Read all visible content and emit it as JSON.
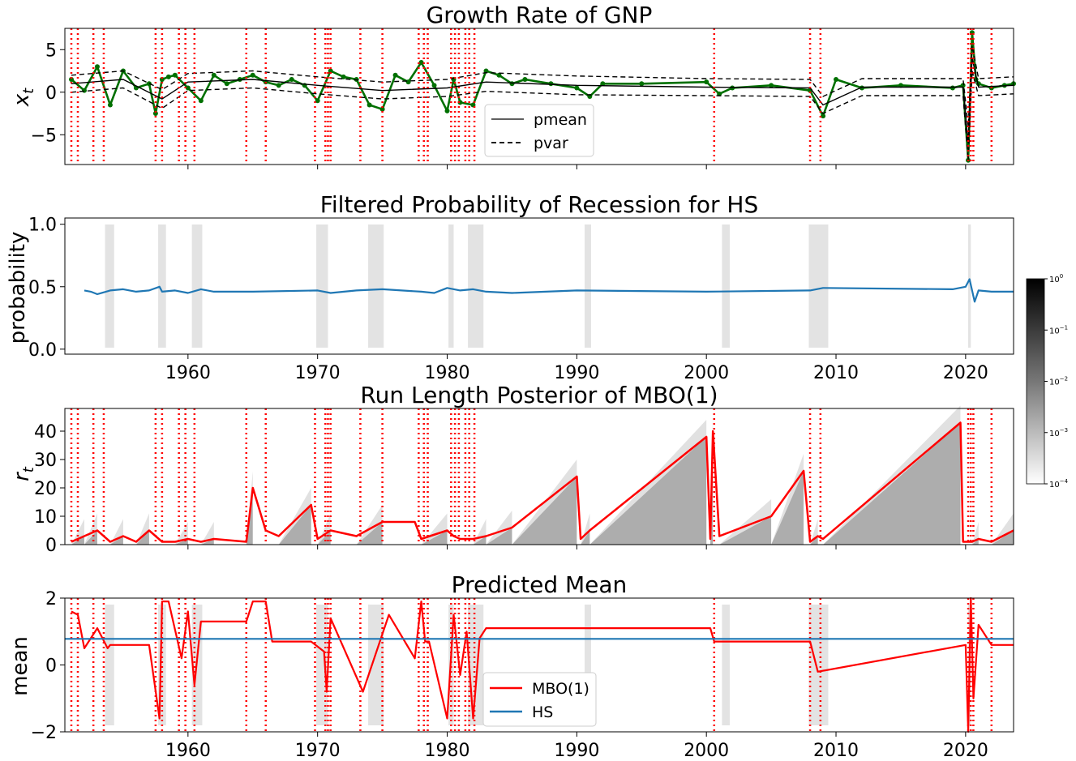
{
  "chart_data": [
    {
      "id": "gnp",
      "type": "line",
      "title": "Growth Rate of GNP",
      "ylabel": "x_t",
      "xlim": [
        1950.5,
        2023.7
      ],
      "ylim": [
        -8.5,
        7.5
      ],
      "yticks": [
        -5,
        0,
        5
      ],
      "legend": {
        "position": "bottom-center",
        "entries": [
          "pmean",
          "pvar"
        ]
      },
      "series": [
        {
          "name": "observed x_t",
          "color": "#007000",
          "style": "line+markers",
          "x": [
            1951,
            1952,
            1953,
            1954,
            1955,
            1956,
            1957,
            1957.5,
            1958,
            1958.5,
            1959,
            1960,
            1961,
            1962,
            1963,
            1964,
            1965,
            1966,
            1967,
            1968,
            1969,
            1970,
            1971,
            1972,
            1973,
            1974,
            1975,
            1976,
            1977,
            1978,
            1979,
            1980,
            1980.5,
            1981,
            1982,
            1983,
            1984,
            1985,
            1986,
            1988,
            1990,
            1991,
            1992,
            1995,
            2000,
            2001,
            2002,
            2005,
            2008,
            2009,
            2010,
            2012,
            2015,
            2019,
            2019.8,
            2020.2,
            2020.5,
            2020.8,
            2021,
            2022,
            2023,
            2023.7
          ],
          "y": [
            1.5,
            0.2,
            3.0,
            -1.5,
            2.5,
            0.5,
            1.0,
            -2.5,
            1.5,
            1.8,
            2.0,
            0.5,
            -1.0,
            2.0,
            1.0,
            1.5,
            2.0,
            1.2,
            0.8,
            1.5,
            0.8,
            -1.0,
            2.5,
            1.8,
            1.5,
            -1.5,
            -2.0,
            2.0,
            1.2,
            3.5,
            0.8,
            -2.2,
            1.5,
            -1.2,
            -1.5,
            2.5,
            2.0,
            1.0,
            1.5,
            1.0,
            0.5,
            -0.5,
            1.0,
            1.0,
            1.2,
            -0.2,
            0.5,
            0.8,
            0.2,
            -2.8,
            1.5,
            0.5,
            0.8,
            0.5,
            0.8,
            -8.0,
            7.0,
            1.5,
            1.0,
            0.5,
            0.8,
            1.0
          ]
        },
        {
          "name": "pmean",
          "color": "#000000",
          "style": "solid",
          "x": [
            1951,
            1955,
            1958,
            1960,
            1965,
            1970,
            1975,
            1980,
            1983,
            1990,
            2000,
            2008,
            2009,
            2012,
            2019.8,
            2020.2,
            2020.5,
            2021,
            2023.7
          ],
          "y": [
            1.0,
            1.5,
            -0.8,
            1.2,
            1.5,
            0.8,
            0.2,
            0.5,
            1.2,
            0.8,
            0.6,
            0.5,
            -1.5,
            0.6,
            0.6,
            -6.0,
            4.0,
            0.6,
            0.8
          ]
        },
        {
          "name": "pvar upper",
          "color": "#000000",
          "style": "dashed",
          "x": [
            1951,
            1955,
            1958,
            1960,
            1965,
            1970,
            1975,
            1980,
            1983,
            1990,
            2000,
            2008,
            2009,
            2012,
            2019.8,
            2020.2,
            2020.5,
            2021,
            2023.7
          ],
          "y": [
            2.0,
            2.5,
            0.3,
            2.2,
            2.5,
            1.8,
            1.2,
            1.5,
            2.3,
            1.9,
            1.6,
            1.5,
            -0.5,
            1.6,
            1.6,
            -4.0,
            5.5,
            1.6,
            1.8
          ]
        },
        {
          "name": "pvar lower",
          "color": "#000000",
          "style": "dashed",
          "x": [
            1951,
            1955,
            1958,
            1960,
            1965,
            1970,
            1975,
            1980,
            1983,
            1990,
            2000,
            2008,
            2009,
            2012,
            2019.8,
            2020.2,
            2020.5,
            2021,
            2023.7
          ],
          "y": [
            0.0,
            0.5,
            -1.9,
            0.2,
            0.5,
            -0.2,
            -0.8,
            -0.5,
            0.1,
            -0.3,
            -0.4,
            -0.5,
            -2.5,
            -0.4,
            -0.4,
            -8.0,
            2.5,
            -0.4,
            -0.2
          ]
        }
      ]
    },
    {
      "id": "prob",
      "type": "line",
      "title": "Filtered Probability of Recession for HS",
      "ylabel": "probability",
      "xlim": [
        1950.5,
        2023.7
      ],
      "ylim": [
        -0.04,
        1.05
      ],
      "yticks": [
        0.0,
        0.5,
        1.0
      ],
      "xticks": [
        1960,
        1970,
        1980,
        1990,
        2000,
        2010,
        2020
      ],
      "series": [
        {
          "name": "HS filtered probability",
          "color": "#1f77b4",
          "x": [
            1952,
            1952.5,
            1953,
            1954,
            1955,
            1956,
            1957,
            1957.8,
            1958,
            1959,
            1960,
            1961,
            1962,
            1965,
            1970,
            1971,
            1973,
            1975,
            1978,
            1979,
            1980,
            1981,
            1982,
            1983,
            1985,
            1990,
            2000,
            2008,
            2009,
            2019,
            2020,
            2020.3,
            2020.7,
            2021,
            2022,
            2023.7
          ],
          "y": [
            0.47,
            0.46,
            0.44,
            0.47,
            0.48,
            0.46,
            0.47,
            0.5,
            0.46,
            0.47,
            0.45,
            0.48,
            0.46,
            0.46,
            0.47,
            0.45,
            0.47,
            0.48,
            0.46,
            0.45,
            0.49,
            0.47,
            0.48,
            0.46,
            0.45,
            0.47,
            0.46,
            0.47,
            0.49,
            0.48,
            0.5,
            0.56,
            0.38,
            0.47,
            0.46,
            0.46
          ]
        }
      ]
    },
    {
      "id": "runlength",
      "type": "heatmap",
      "title": "Run Length Posterior of MBO(1)",
      "ylabel": "r_t",
      "xlim": [
        1950.5,
        2023.7
      ],
      "ylim": [
        0,
        48
      ],
      "yticks": [
        0,
        10,
        20,
        30,
        40
      ],
      "colorbar": {
        "scale": "log",
        "range": [
          0.0001,
          1
        ],
        "ticks": [
          "10^0",
          "10^-1",
          "10^-2",
          "10^-3",
          "10^-4"
        ]
      },
      "map_run_length": {
        "name": "MAP run length",
        "color": "#ff0000",
        "x": [
          1951,
          1952,
          1953,
          1954,
          1955,
          1956,
          1957,
          1958,
          1959,
          1960,
          1961,
          1962,
          1964.5,
          1965,
          1966,
          1967,
          1969.5,
          1970,
          1971,
          1973,
          1975,
          1977.5,
          1978,
          1980,
          1980.5,
          1981,
          1982,
          1983,
          1985,
          1990,
          1990.3,
          1991,
          2000,
          2000.3,
          2000.5,
          2001,
          2005,
          2007.5,
          2008,
          2008.6,
          2009,
          2019.6,
          2019.8,
          2020.5,
          2021,
          2022,
          2023.7
        ],
        "y": [
          1,
          3,
          5,
          1,
          3,
          1,
          5,
          1,
          1,
          2,
          1,
          2,
          1,
          20,
          5,
          3,
          14,
          2,
          5,
          3,
          8,
          8,
          2,
          5,
          3,
          2,
          2,
          3,
          6,
          24,
          2,
          5,
          38,
          2,
          40,
          3,
          10,
          26,
          1,
          3,
          2,
          43,
          1,
          1,
          2,
          1,
          5
        ]
      }
    },
    {
      "id": "mean",
      "type": "line",
      "title": "Predicted Mean",
      "ylabel": "mean",
      "xlim": [
        1950.5,
        2023.7
      ],
      "ylim": [
        -2,
        2
      ],
      "yticks": [
        -2,
        0,
        2
      ],
      "xticks": [
        1960,
        1970,
        1980,
        1990,
        2000,
        2010,
        2020
      ],
      "legend": {
        "position": "bottom-center",
        "entries": [
          "MBO(1)",
          "HS"
        ]
      },
      "series": [
        {
          "name": "MBO(1)",
          "color": "#ff0000",
          "x": [
            1951,
            1951.5,
            1952,
            1953,
            1953.8,
            1954,
            1957,
            1957.8,
            1958,
            1958.5,
            1959.5,
            1960,
            1960.5,
            1961,
            1964.5,
            1965,
            1966,
            1966.5,
            1969.5,
            1970.5,
            1970.7,
            1971,
            1973.5,
            1975.5,
            1977.5,
            1978,
            1978.3,
            1978.6,
            1980,
            1980.5,
            1981,
            1981.5,
            1982,
            1982.5,
            1983,
            2000.3,
            2000.6,
            2008,
            2008.6,
            2020,
            2020.2,
            2020.4,
            2020.6,
            2021,
            2022,
            2023.7
          ],
          "y": [
            1.6,
            1.5,
            0.5,
            1.1,
            0.5,
            0.6,
            0.6,
            -1.6,
            1.9,
            1.9,
            0.2,
            1.6,
            -0.6,
            1.3,
            1.3,
            1.9,
            1.9,
            0.7,
            0.7,
            0.4,
            -0.8,
            1.4,
            -0.8,
            1.5,
            0.2,
            1.9,
            0.7,
            0.7,
            -1.6,
            1.5,
            -0.3,
            1.0,
            -1.6,
            0.8,
            1.1,
            1.1,
            0.7,
            0.7,
            -0.2,
            0.6,
            -2.0,
            2.0,
            -1.0,
            1.2,
            0.6,
            0.6
          ]
        },
        {
          "name": "HS",
          "color": "#1f77b4",
          "x": [
            1950.5,
            2023.7
          ],
          "y": [
            0.78,
            0.78
          ]
        }
      ]
    }
  ],
  "changepoints": [
    1951,
    1951.5,
    1952.7,
    1953.5,
    1957.5,
    1958,
    1959.3,
    1959.8,
    1960.5,
    1964.5,
    1966,
    1969.8,
    1970.6,
    1970.8,
    1971,
    1973.3,
    1975,
    1977.8,
    1978.2,
    1978.5,
    1980.3,
    1980.6,
    1980.9,
    1981.4,
    1981.7,
    1982.1,
    2000.6,
    2008,
    2008.8,
    2020.2,
    2020.4,
    2020.6,
    2022
  ],
  "recessions": [
    [
      1953.6,
      1954.3
    ],
    [
      1957.7,
      1958.3
    ],
    [
      1960.3,
      1961.1
    ],
    [
      1969.9,
      1970.8
    ],
    [
      1973.9,
      1975.1
    ],
    [
      1980.1,
      1980.5
    ],
    [
      1981.6,
      1982.8
    ],
    [
      1990.6,
      1991.1
    ],
    [
      2001.2,
      2001.8
    ],
    [
      2007.9,
      2009.4
    ],
    [
      2020.2,
      2020.4
    ]
  ]
}
